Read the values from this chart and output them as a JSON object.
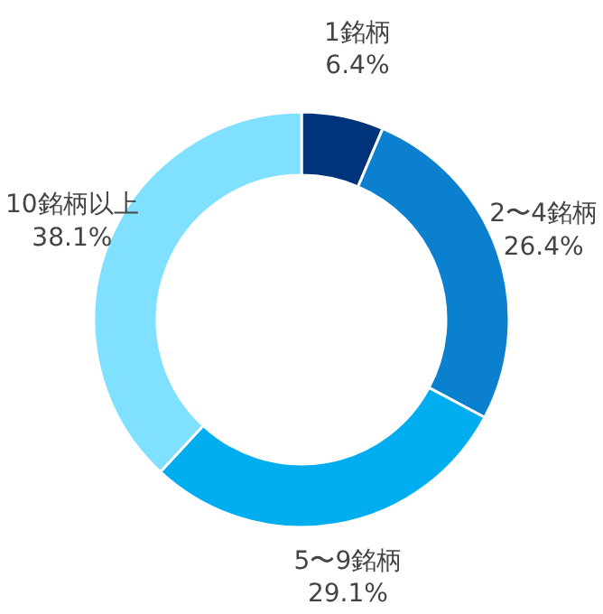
{
  "chart_data": {
    "type": "donut",
    "categories": [
      "1銘柄",
      "2〜4銘柄",
      "5〜9銘柄",
      "10銘柄以上"
    ],
    "values": [
      6.4,
      26.4,
      29.1,
      38.1
    ],
    "value_labels": [
      "6.4%",
      "26.4%",
      "29.1%",
      "38.1%"
    ],
    "colors": [
      "#00347a",
      "#0a80cf",
      "#00aeef",
      "#80e0ff"
    ]
  }
}
